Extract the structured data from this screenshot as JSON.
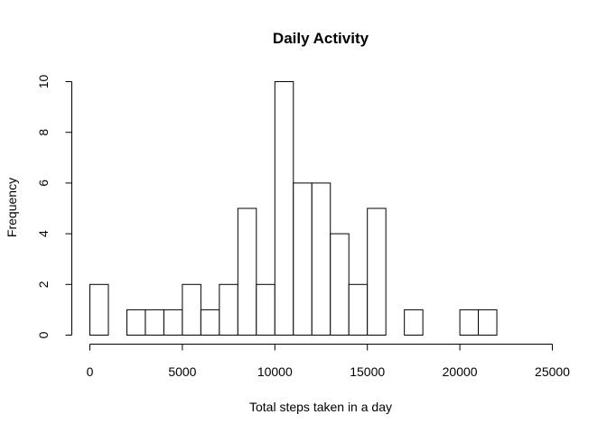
{
  "chart_data": {
    "type": "bar",
    "title": "Daily Activity",
    "xlabel": "Total steps taken in a day",
    "ylabel": "Frequency",
    "bin_width": 1000,
    "bins": [
      {
        "x0": 0,
        "x1": 1000,
        "count": 2
      },
      {
        "x0": 1000,
        "x1": 2000,
        "count": 0
      },
      {
        "x0": 2000,
        "x1": 3000,
        "count": 1
      },
      {
        "x0": 3000,
        "x1": 4000,
        "count": 1
      },
      {
        "x0": 4000,
        "x1": 5000,
        "count": 1
      },
      {
        "x0": 5000,
        "x1": 6000,
        "count": 2
      },
      {
        "x0": 6000,
        "x1": 7000,
        "count": 1
      },
      {
        "x0": 7000,
        "x1": 8000,
        "count": 2
      },
      {
        "x0": 8000,
        "x1": 9000,
        "count": 5
      },
      {
        "x0": 9000,
        "x1": 10000,
        "count": 2
      },
      {
        "x0": 10000,
        "x1": 11000,
        "count": 10
      },
      {
        "x0": 11000,
        "x1": 12000,
        "count": 6
      },
      {
        "x0": 12000,
        "x1": 13000,
        "count": 6
      },
      {
        "x0": 13000,
        "x1": 14000,
        "count": 4
      },
      {
        "x0": 14000,
        "x1": 15000,
        "count": 2
      },
      {
        "x0": 15000,
        "x1": 16000,
        "count": 5
      },
      {
        "x0": 16000,
        "x1": 17000,
        "count": 0
      },
      {
        "x0": 17000,
        "x1": 18000,
        "count": 1
      },
      {
        "x0": 18000,
        "x1": 19000,
        "count": 0
      },
      {
        "x0": 19000,
        "x1": 20000,
        "count": 0
      },
      {
        "x0": 20000,
        "x1": 21000,
        "count": 1
      },
      {
        "x0": 21000,
        "x1": 22000,
        "count": 1
      }
    ],
    "xlim": [
      0,
      25000
    ],
    "ylim": [
      0,
      10
    ],
    "x_ticks": [
      0,
      5000,
      10000,
      15000,
      20000,
      25000
    ],
    "y_ticks": [
      0,
      2,
      4,
      6,
      8,
      10
    ],
    "grid": false,
    "colors": {
      "bar_fill": "#ffffff",
      "bar_stroke": "#000000"
    }
  }
}
